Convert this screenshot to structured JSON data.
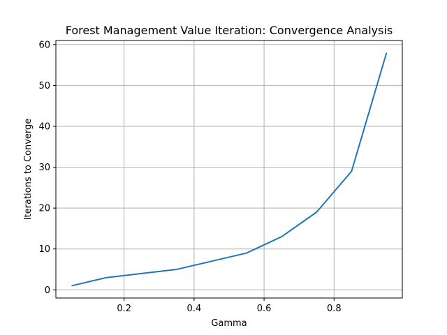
{
  "chart_data": {
    "type": "line",
    "title": "Forest Management Value Iteration: Convergence Analysis",
    "xlabel": "Gamma",
    "ylabel": "Iterations to Converge",
    "x": [
      0.05,
      0.15,
      0.25,
      0.35,
      0.45,
      0.55,
      0.65,
      0.75,
      0.85,
      0.95
    ],
    "series": [
      {
        "values": [
          1,
          3,
          4,
          5,
          7,
          9,
          13,
          19,
          29,
          58
        ],
        "color": "#1f77b4"
      }
    ],
    "xlim": [
      0.005,
      0.995
    ],
    "ylim": [
      -2,
      61
    ],
    "x_ticks": [
      0.2,
      0.4,
      0.6,
      0.8
    ],
    "x_tick_labels": [
      "0.2",
      "0.4",
      "0.6",
      "0.8"
    ],
    "y_ticks": [
      0,
      10,
      20,
      30,
      40,
      50,
      60
    ],
    "y_tick_labels": [
      "0",
      "10",
      "20",
      "30",
      "40",
      "50",
      "60"
    ],
    "grid": true,
    "legend": "none"
  },
  "colors": {
    "line": "#1f77b4",
    "grid": "#b0b0b0",
    "axes": "#000000",
    "background": "#ffffff"
  }
}
